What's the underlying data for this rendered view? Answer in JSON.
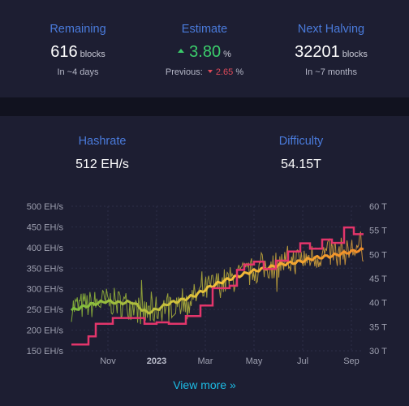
{
  "difficulty_adjustment": {
    "remaining": {
      "title": "Remaining",
      "value": "616",
      "unit": "blocks",
      "sub": "In ~4 days"
    },
    "estimate": {
      "title": "Estimate",
      "value": "3.80",
      "unit": "%",
      "previous_label": "Previous:",
      "previous_value": "2.65",
      "previous_unit": "%",
      "up_color": "#3bcc6b",
      "down_color": "#e04a5a"
    },
    "next_halving": {
      "title": "Next Halving",
      "value": "32201",
      "unit": "blocks",
      "sub": "In ~7 months"
    }
  },
  "hashrate_panel": {
    "hashrate": {
      "title": "Hashrate",
      "value": "512 EH/s"
    },
    "difficulty": {
      "title": "Difficulty",
      "value": "54.15T"
    },
    "view_more": "View more »"
  },
  "chart_data": {
    "type": "line",
    "x_ticks": [
      {
        "t": 1.0,
        "label": "Nov"
      },
      {
        "t": 3.0,
        "label": "2023",
        "bold": true
      },
      {
        "t": 5.0,
        "label": "Mar"
      },
      {
        "t": 7.0,
        "label": "May"
      },
      {
        "t": 9.0,
        "label": "Jul"
      },
      {
        "t": 11.0,
        "label": "Sep"
      }
    ],
    "x_range": [
      -0.5,
      11.5
    ],
    "y_left": {
      "ticks": [
        150,
        200,
        250,
        300,
        350,
        400,
        450,
        500
      ],
      "unit": "EH/s",
      "range": [
        150,
        500
      ]
    },
    "y_right": {
      "ticks": [
        30,
        35,
        40,
        45,
        50,
        55,
        60
      ],
      "unit": "T",
      "range": [
        30,
        60
      ]
    },
    "grid": true,
    "series": [
      {
        "name": "hashrate_raw",
        "axis": "left",
        "colors": [
          "#8fbf3a",
          "#e6a23c"
        ],
        "seed": 7,
        "trend": [
          [
            -0.5,
            255
          ],
          [
            0.3,
            262
          ],
          [
            1.0,
            270
          ],
          [
            1.8,
            262
          ],
          [
            2.6,
            240
          ],
          [
            3.2,
            255
          ],
          [
            4.0,
            270
          ],
          [
            4.6,
            280
          ],
          [
            5.2,
            305
          ],
          [
            6.0,
            320
          ],
          [
            6.8,
            340
          ],
          [
            7.6,
            355
          ],
          [
            8.4,
            365
          ],
          [
            9.2,
            375
          ],
          [
            10.0,
            385
          ],
          [
            10.8,
            392
          ],
          [
            11.5,
            400
          ]
        ]
      },
      {
        "name": "hashrate_avg",
        "axis": "left",
        "colors": [
          "#7cbc3e",
          "#f1c23b",
          "#f28c28"
        ],
        "points": [
          [
            -0.5,
            248
          ],
          [
            0.3,
            262
          ],
          [
            0.9,
            270
          ],
          [
            1.5,
            266
          ],
          [
            2.0,
            268
          ],
          [
            2.6,
            242
          ],
          [
            3.0,
            250
          ],
          [
            3.5,
            265
          ],
          [
            4.0,
            272
          ],
          [
            4.6,
            285
          ],
          [
            5.2,
            305
          ],
          [
            5.8,
            320
          ],
          [
            6.3,
            330
          ],
          [
            6.9,
            342
          ],
          [
            7.5,
            350
          ],
          [
            8.2,
            360
          ],
          [
            8.8,
            365
          ],
          [
            9.5,
            375
          ],
          [
            10.2,
            380
          ],
          [
            10.8,
            388
          ],
          [
            11.5,
            395
          ]
        ]
      },
      {
        "name": "difficulty",
        "axis": "right",
        "color": "#e3356b",
        "steps": [
          [
            -0.5,
            31.3
          ],
          [
            0.2,
            33.0
          ],
          [
            0.5,
            35.6
          ],
          [
            1.2,
            36.8
          ],
          [
            2.5,
            35.6
          ],
          [
            3.0,
            35.9
          ],
          [
            3.5,
            35.6
          ],
          [
            4.2,
            37.2
          ],
          [
            4.8,
            39.4
          ],
          [
            5.3,
            43.0
          ],
          [
            6.0,
            43.5
          ],
          [
            6.3,
            46.8
          ],
          [
            6.6,
            47.9
          ],
          [
            7.0,
            48.5
          ],
          [
            7.4,
            47.0
          ],
          [
            7.9,
            48.7
          ],
          [
            8.4,
            50.6
          ],
          [
            8.9,
            52.3
          ],
          [
            9.3,
            51.2
          ],
          [
            9.8,
            53.1
          ],
          [
            10.2,
            52.4
          ],
          [
            10.7,
            55.6
          ],
          [
            11.1,
            54.2
          ],
          [
            11.5,
            54.2
          ]
        ]
      }
    ]
  }
}
